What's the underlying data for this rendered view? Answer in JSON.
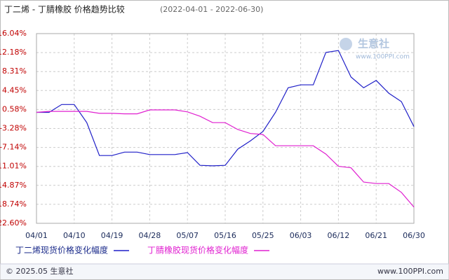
{
  "chart_data": {
    "type": "line",
    "title": "丁二烯 - 丁腈橡胶 价格趋势比较",
    "subtitle": "(2022-04-01 - 2022-06-30)",
    "watermark": "生意社",
    "watermark_url": "www.100PPI.com",
    "footer_left": "© 2025.05 生意社",
    "footer_right": "www.100PPI.com",
    "categories": [
      "04/01",
      null,
      null,
      "04/10",
      null,
      null,
      "04/19",
      null,
      null,
      "04/28",
      null,
      null,
      "05/07",
      null,
      null,
      "05/16",
      null,
      null,
      "05/25",
      null,
      null,
      "06/03",
      null,
      null,
      "06/12",
      null,
      null,
      "06/21",
      null,
      null,
      "06/30"
    ],
    "series": [
      {
        "name": "丁二烯现货价格变化幅度",
        "color": "#1f1fc8",
        "values": [
          0.0,
          0.0,
          1.6,
          1.6,
          -2.1,
          -8.8,
          -8.8,
          -8.1,
          -8.1,
          -8.6,
          -8.6,
          -8.6,
          -8.2,
          -10.8,
          -10.9,
          -10.8,
          -7.5,
          -5.8,
          -3.9,
          0.0,
          5.0,
          5.6,
          5.6,
          12.2,
          12.6,
          7.2,
          5.0,
          6.5,
          3.9,
          2.2,
          -2.9
        ]
      },
      {
        "name": "丁腈橡胶现货价格变化幅度",
        "color": "#e020d0",
        "values": [
          0.0,
          0.2,
          0.2,
          0.2,
          0.2,
          -0.2,
          -0.2,
          -0.3,
          -0.3,
          0.5,
          0.5,
          0.5,
          0.1,
          -0.8,
          -2.1,
          -2.1,
          -3.5,
          -4.3,
          -4.5,
          -6.8,
          -6.8,
          -6.8,
          -6.8,
          -8.5,
          -11.0,
          -11.3,
          -14.2,
          -14.5,
          -14.5,
          -16.3,
          -19.3
        ]
      }
    ],
    "ylim": [
      -22.6,
      16.04
    ],
    "yticks": [
      {
        "value": 16.04,
        "label": "16.04%"
      },
      {
        "value": 12.18,
        "label": "12.18%"
      },
      {
        "value": 8.31,
        "label": "8.31%"
      },
      {
        "value": 4.45,
        "label": "4.45%"
      },
      {
        "value": 0.58,
        "label": "0.58%"
      },
      {
        "value": -3.28,
        "label": "-3.28%"
      },
      {
        "value": -7.14,
        "label": "-7.14%"
      },
      {
        "value": -11.01,
        "label": "-11.01%"
      },
      {
        "value": -14.87,
        "label": "-14.87%"
      },
      {
        "value": -18.74,
        "label": "-18.74%"
      },
      {
        "value": -22.6,
        "label": "-22.60%"
      }
    ],
    "grid": true
  }
}
